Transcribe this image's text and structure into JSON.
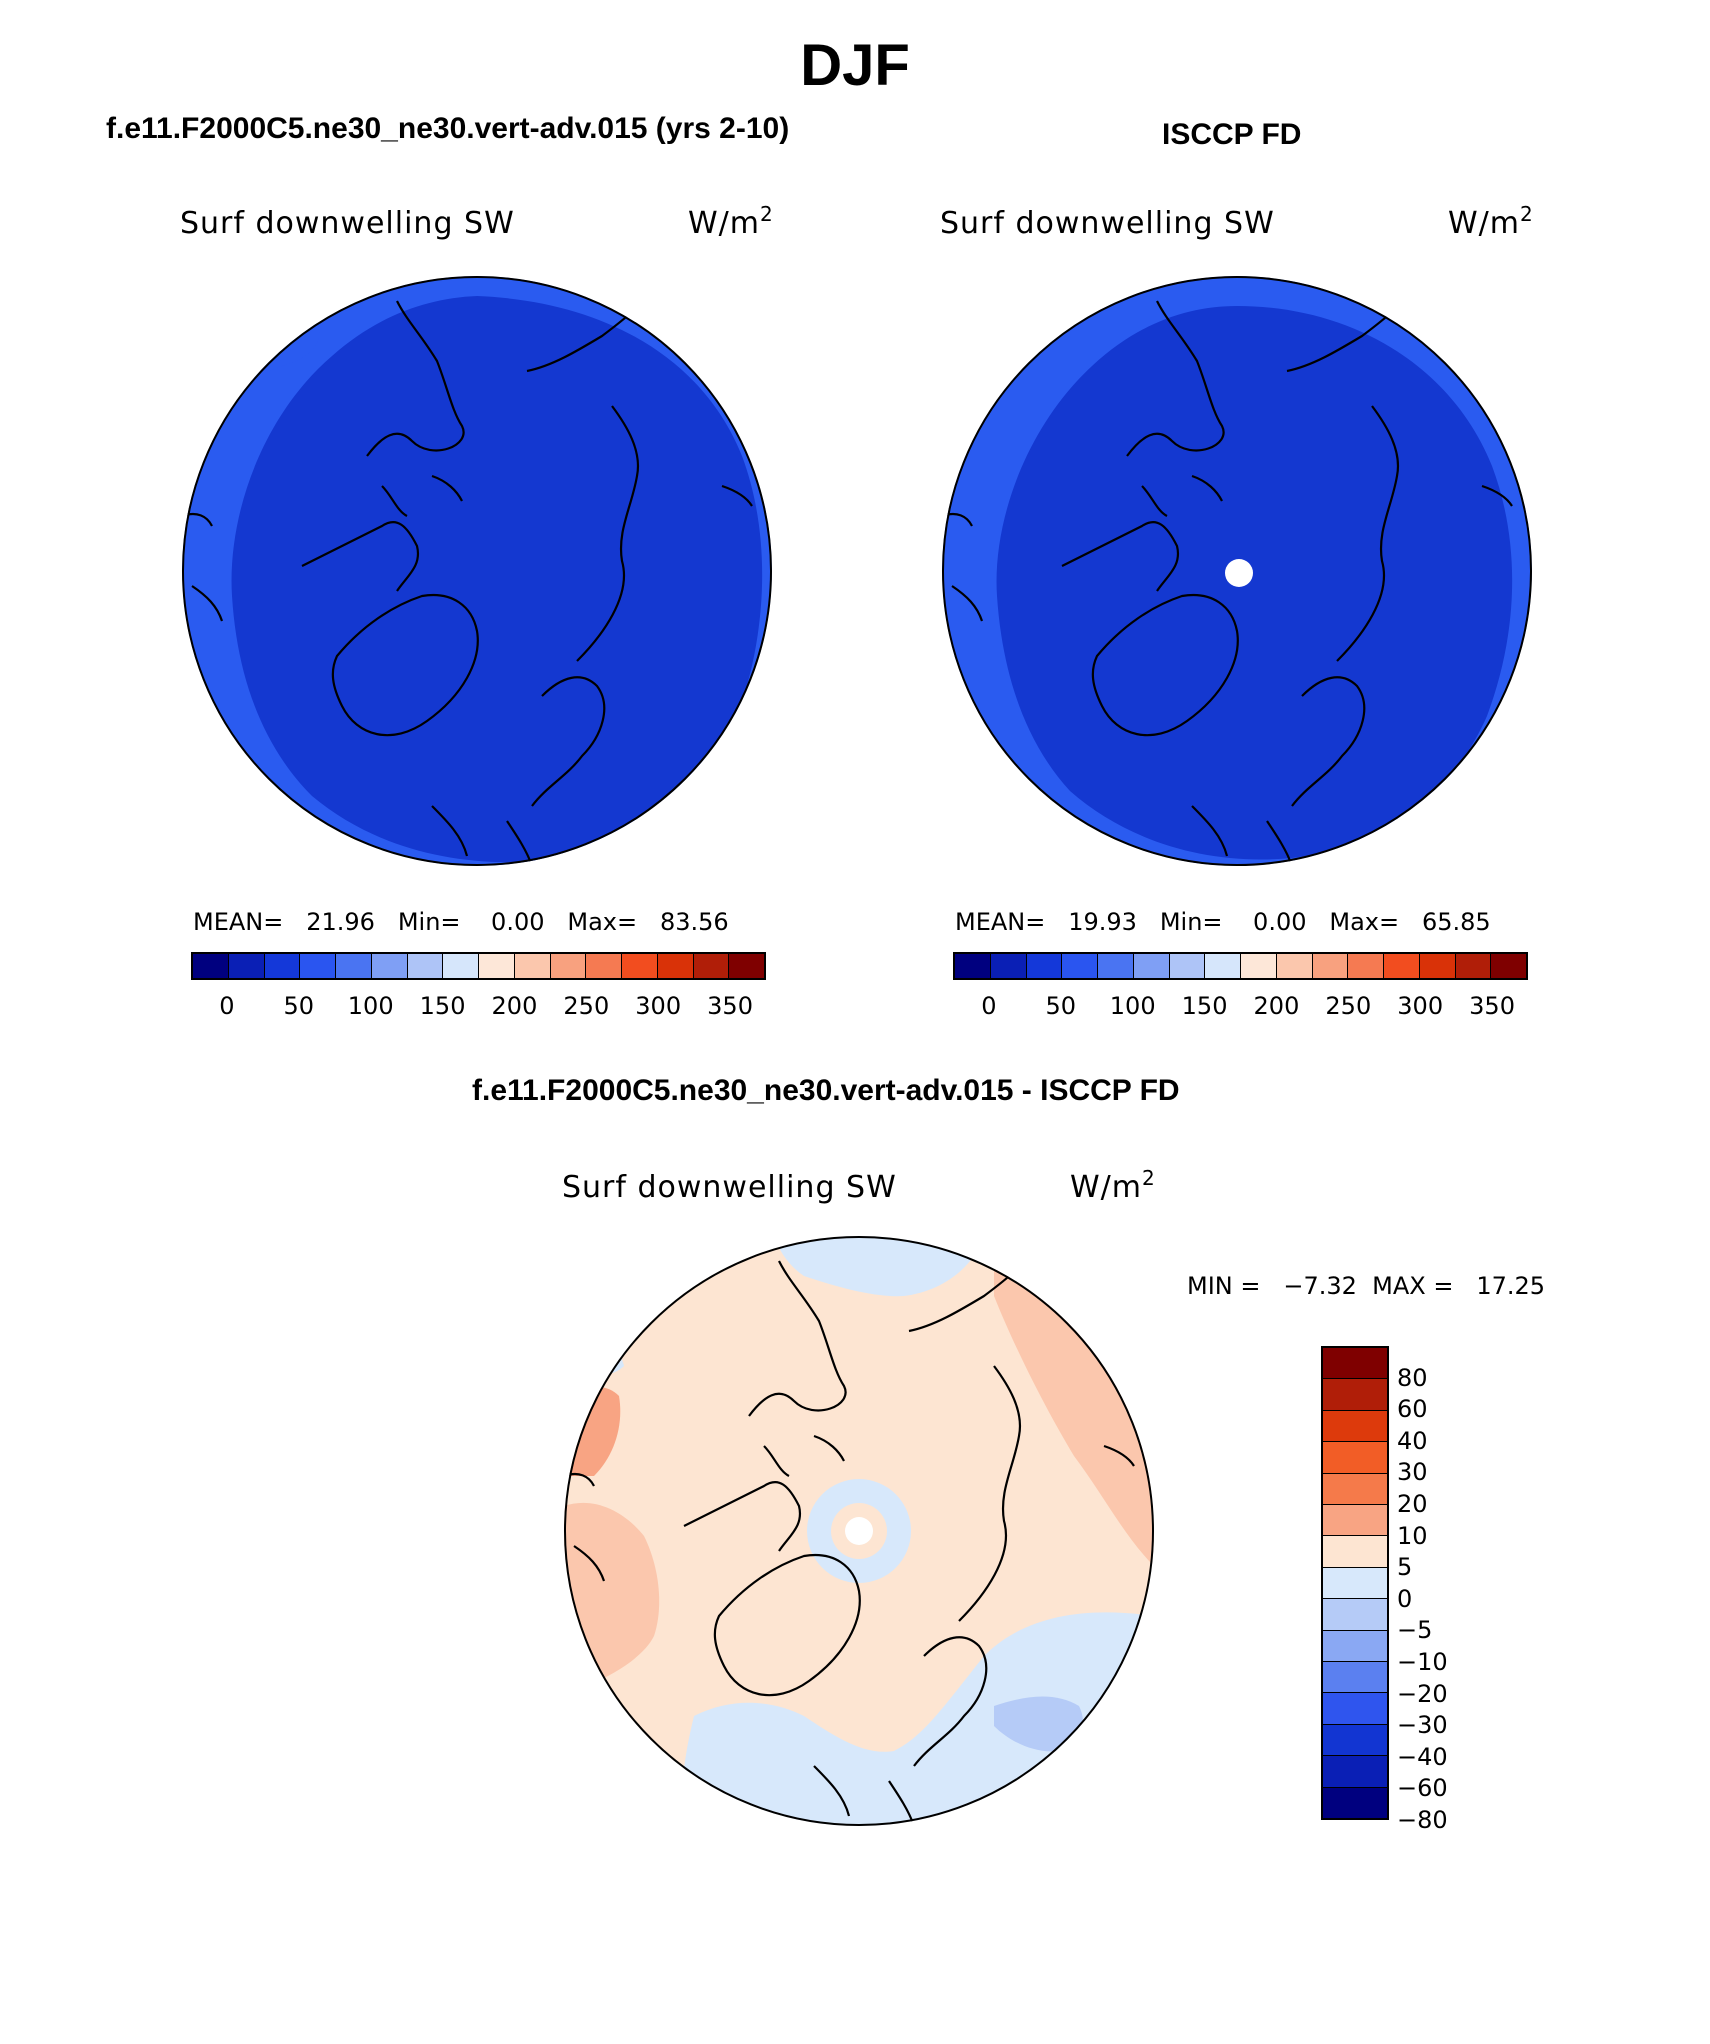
{
  "page_title": "DJF",
  "panels": {
    "model": {
      "title": "f.e11.F2000C5.ne30_ne30.vert-adv.015 (yrs 2-10)",
      "field": "Surf downwelling SW",
      "units": "W/m",
      "units_exp": "2",
      "stats": "MEAN=   21.96   Min=    0.00   Max=   83.56",
      "outer_color": "#2a5bf0",
      "inner_color": "#1438d0"
    },
    "obs": {
      "title": "ISCCP FD",
      "field": "Surf downwelling SW",
      "units": "W/m",
      "units_exp": "2",
      "stats": "MEAN=   19.93   Min=    0.00   Max=   65.85",
      "outer_color": "#2a5bf0",
      "inner_color": "#1438d0"
    },
    "diff": {
      "title": "f.e11.F2000C5.ne30_ne30.vert-adv.015 - ISCCP FD",
      "field": "Surf downwelling SW",
      "units": "W/m",
      "units_exp": "2",
      "stats": "MIN =   −7.32  MAX =   17.25"
    }
  },
  "colorbar_abs": {
    "colors": [
      "#00007f",
      "#0a1fb5",
      "#1438d9",
      "#2a55f0",
      "#4a74f2",
      "#7f9ff5",
      "#aec4f7",
      "#d6e6fb",
      "#fde7d8",
      "#fbc7ad",
      "#f8a17f",
      "#f57a52",
      "#f24d1f",
      "#d93208",
      "#b01e08",
      "#7f0000"
    ],
    "tick_labels": [
      "0",
      "50",
      "100",
      "150",
      "200",
      "250",
      "300",
      "350"
    ]
  },
  "colorbar_diff": {
    "colors": [
      "#7f0000",
      "#b01e08",
      "#dd3a0c",
      "#f25d26",
      "#f57a4a",
      "#f8a483",
      "#fde5d2",
      "#d7e8fb",
      "#b5cbf7",
      "#8aa8f3",
      "#5b80f0",
      "#2f55ee",
      "#1235d2",
      "#0a1fb5",
      "#00007f"
    ],
    "tick_labels": [
      "80",
      "60",
      "40",
      "30",
      "20",
      "10",
      "5",
      "0",
      "−5",
      "−10",
      "−20",
      "−30",
      "−40",
      "−60",
      "−80"
    ]
  },
  "chart_data": [
    {
      "type": "heatmap",
      "title": "f.e11.F2000C5.ne30_ne30.vert-adv.015 (yrs 2-10)",
      "variable": "Surf downwelling SW",
      "units": "W/m2",
      "season": "DJF",
      "mean": 21.96,
      "min": 0.0,
      "max": 83.56,
      "contour_levels": [
        0,
        25,
        50,
        75,
        100,
        125,
        150,
        175,
        200,
        225,
        250,
        275,
        300,
        325,
        350
      ]
    },
    {
      "type": "heatmap",
      "title": "ISCCP FD",
      "variable": "Surf downwelling SW",
      "units": "W/m2",
      "season": "DJF",
      "mean": 19.93,
      "min": 0.0,
      "max": 65.85,
      "contour_levels": [
        0,
        25,
        50,
        75,
        100,
        125,
        150,
        175,
        200,
        225,
        250,
        275,
        300,
        325,
        350
      ]
    },
    {
      "type": "heatmap",
      "title": "f.e11.F2000C5.ne30_ne30.vert-adv.015 - ISCCP FD",
      "variable": "Surf downwelling SW",
      "units": "W/m2",
      "season": "DJF",
      "min": -7.32,
      "max": 17.25,
      "contour_levels": [
        -80,
        -60,
        -40,
        -30,
        -20,
        -10,
        -5,
        0,
        5,
        10,
        20,
        30,
        40,
        60,
        80
      ]
    }
  ]
}
